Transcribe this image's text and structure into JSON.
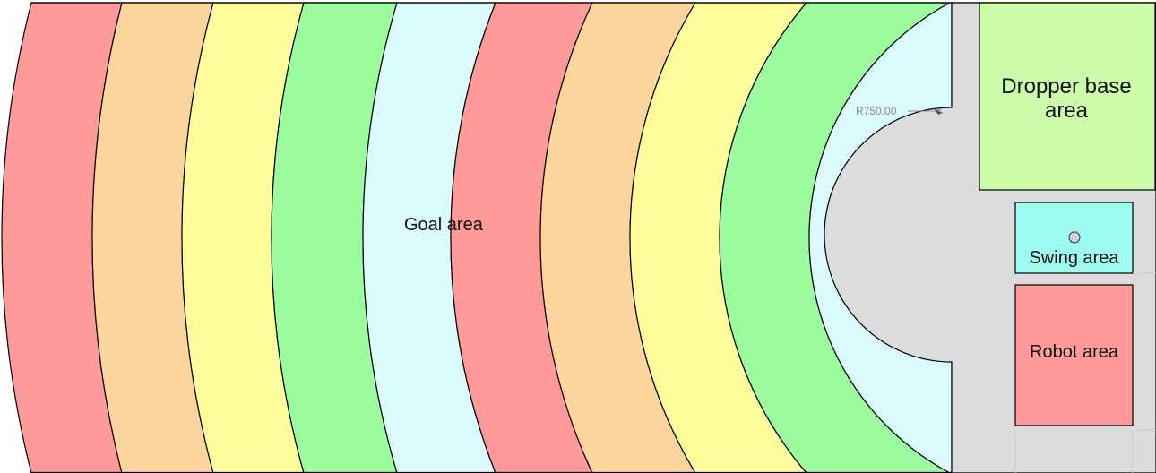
{
  "colors": {
    "red": "#fe9a9a",
    "orange": "#fbd59c",
    "yellow": "#fdfd9c",
    "green": "#9afc9c",
    "lightblue": "#dafafe",
    "gray": "#dcdcdc",
    "dropper_base": "#ccfcaa",
    "swing": "#9cfcf0",
    "outline": "#000000",
    "dimension": "#8c8c8c"
  },
  "bands": [
    "red",
    "orange",
    "yellow",
    "green",
    "lightblue",
    "red",
    "orange",
    "yellow",
    "green",
    "lightblue"
  ],
  "labels": {
    "goal_area": "Goal area",
    "dropper_base_area": "Dropper base area",
    "swing_area": "Swing area",
    "robot_area": "Robot area",
    "radius_dimension": "R750.00"
  }
}
